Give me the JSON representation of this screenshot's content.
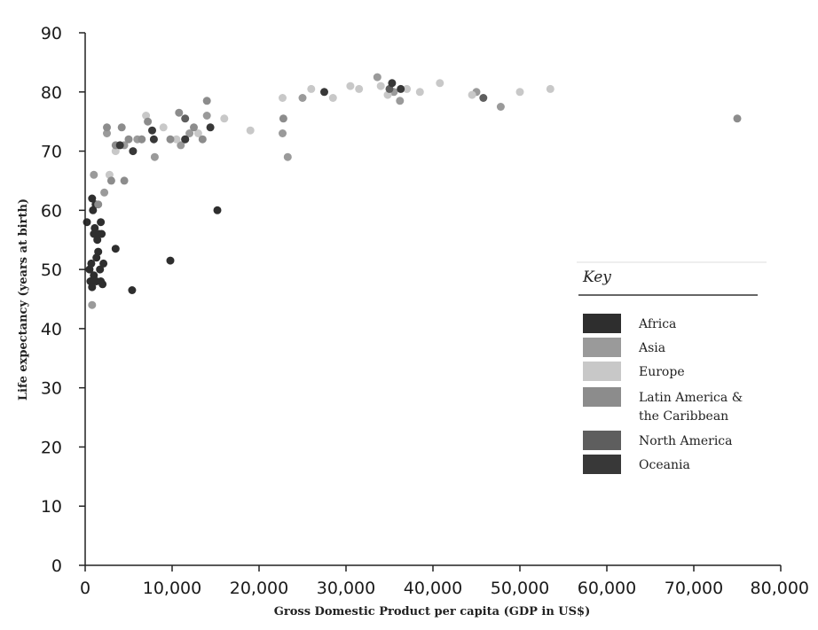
{
  "chart_data": {
    "type": "scatter",
    "xlabel": "Gross Domestic Product per capita (GDP in US$)",
    "ylabel": "Life expectancy (years at birth)",
    "xlim": [
      0,
      80000
    ],
    "ylim": [
      0,
      90
    ],
    "x_ticks": [
      "0",
      "10,000",
      "20,000",
      "30,000",
      "40,000",
      "50,000",
      "60,000",
      "70,000",
      "80,000"
    ],
    "y_ticks": [
      "0",
      "10",
      "20",
      "30",
      "40",
      "50",
      "60",
      "70",
      "80",
      "90"
    ],
    "grid": false,
    "legend": {
      "title": "Key",
      "placement": "right",
      "entries": [
        {
          "label_lines": [
            "Africa"
          ],
          "color": "#2e2e2e"
        },
        {
          "label_lines": [
            "Asia"
          ],
          "color": "#9a9a9a"
        },
        {
          "label_lines": [
            "Europe"
          ],
          "color": "#c8c8c8"
        },
        {
          "label_lines": [
            "Latin America &",
            "the Caribbean"
          ],
          "color": "#8c8c8c"
        },
        {
          "label_lines": [
            "North America"
          ],
          "color": "#5e5e5e"
        },
        {
          "label_lines": [
            "Oceania"
          ],
          "color": "#383838"
        }
      ]
    },
    "series": [
      {
        "name": "Africa",
        "color": "#2e2e2e",
        "points": [
          [
            200,
            58
          ],
          [
            500,
            50
          ],
          [
            600,
            48
          ],
          [
            700,
            51
          ],
          [
            800,
            62
          ],
          [
            800,
            47
          ],
          [
            900,
            60
          ],
          [
            1000,
            56
          ],
          [
            1000,
            49
          ],
          [
            1100,
            57
          ],
          [
            1200,
            61
          ],
          [
            1300,
            52
          ],
          [
            1300,
            48
          ],
          [
            1400,
            55
          ],
          [
            1500,
            53
          ],
          [
            1600,
            56
          ],
          [
            1700,
            50
          ],
          [
            1800,
            58
          ],
          [
            1800,
            48
          ],
          [
            1900,
            56
          ],
          [
            2000,
            47.5
          ],
          [
            2100,
            51
          ],
          [
            3500,
            53.5
          ],
          [
            5400,
            46.5
          ],
          [
            9800,
            51.5
          ],
          [
            15200,
            60
          ]
        ]
      },
      {
        "name": "Asia",
        "color": "#9a9a9a",
        "points": [
          [
            800,
            44
          ],
          [
            1000,
            66
          ],
          [
            2200,
            63
          ],
          [
            2500,
            73
          ],
          [
            4500,
            71
          ],
          [
            6000,
            72
          ],
          [
            8000,
            69
          ],
          [
            11000,
            71
          ],
          [
            12000,
            73
          ],
          [
            14000,
            76
          ],
          [
            22700,
            73
          ],
          [
            23300,
            69
          ],
          [
            25000,
            79
          ],
          [
            33600,
            82.5
          ],
          [
            35500,
            80
          ],
          [
            36200,
            78.5
          ],
          [
            45000,
            80
          ],
          [
            47800,
            77.5
          ]
        ]
      },
      {
        "name": "Europe",
        "color": "#c8c8c8",
        "points": [
          [
            2800,
            66
          ],
          [
            3500,
            70
          ],
          [
            6500,
            72
          ],
          [
            7000,
            76
          ],
          [
            9000,
            74
          ],
          [
            10500,
            72
          ],
          [
            13000,
            73
          ],
          [
            16000,
            75.5
          ],
          [
            19000,
            73.5
          ],
          [
            22700,
            79
          ],
          [
            26000,
            80.5
          ],
          [
            28500,
            79
          ],
          [
            30500,
            81
          ],
          [
            31500,
            80.5
          ],
          [
            34000,
            81
          ],
          [
            34800,
            79.5
          ],
          [
            37000,
            80.5
          ],
          [
            38500,
            80
          ],
          [
            40800,
            81.5
          ],
          [
            44500,
            79.5
          ],
          [
            50000,
            80
          ],
          [
            53500,
            80.5
          ]
        ]
      },
      {
        "name": "Latin America & the Caribbean",
        "color": "#8c8c8c",
        "points": [
          [
            1500,
            61
          ],
          [
            2500,
            74
          ],
          [
            3000,
            65
          ],
          [
            3500,
            71
          ],
          [
            4200,
            74
          ],
          [
            4500,
            65
          ],
          [
            5000,
            72
          ],
          [
            6500,
            72
          ],
          [
            7200,
            75
          ],
          [
            9800,
            72
          ],
          [
            10800,
            76.5
          ],
          [
            11500,
            72
          ],
          [
            12500,
            74
          ],
          [
            13500,
            72
          ],
          [
            14000,
            78.5
          ],
          [
            22800,
            75.5
          ],
          [
            75000,
            75.5
          ]
        ]
      },
      {
        "name": "North America",
        "color": "#5e5e5e",
        "points": [
          [
            11500,
            75.5
          ],
          [
            35000,
            80.5
          ],
          [
            45800,
            79
          ]
        ]
      },
      {
        "name": "Oceania",
        "color": "#383838",
        "points": [
          [
            4000,
            71
          ],
          [
            5500,
            70
          ],
          [
            7700,
            73.5
          ],
          [
            7900,
            72
          ],
          [
            11500,
            72
          ],
          [
            14400,
            74
          ],
          [
            27500,
            80
          ],
          [
            35300,
            81.5
          ],
          [
            36300,
            80.5
          ]
        ]
      }
    ]
  }
}
